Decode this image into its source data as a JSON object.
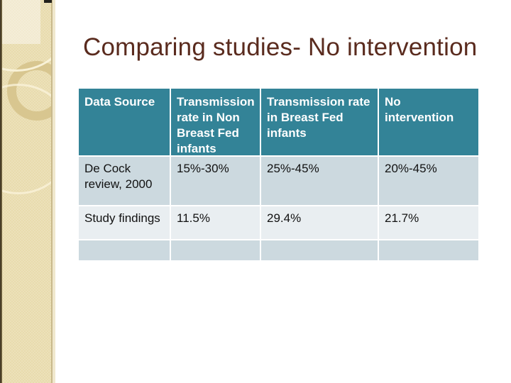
{
  "slide": {
    "title": "Comparing studies- No intervention"
  },
  "table": {
    "columns": [
      "Data Source",
      "Transmission rate in Non Breast Fed infants",
      "Transmission rate in Breast Fed infants",
      "No intervention"
    ],
    "rows": [
      [
        "De Cock review, 2000",
        "15%-30%",
        "25%-45%",
        "20%-45%"
      ],
      [
        "Study findings",
        "11.5%",
        "29.4%",
        "21.7%"
      ],
      [
        "",
        "",
        "",
        ""
      ]
    ]
  },
  "colors": {
    "title_text": "#5A2B1E",
    "header_bg": "#338397",
    "header_text": "#FFFFFF",
    "row_band_dark": "#CCD9DF",
    "row_band_light": "#E9EEF1",
    "sidebar_beige": "#E8DBAD"
  }
}
